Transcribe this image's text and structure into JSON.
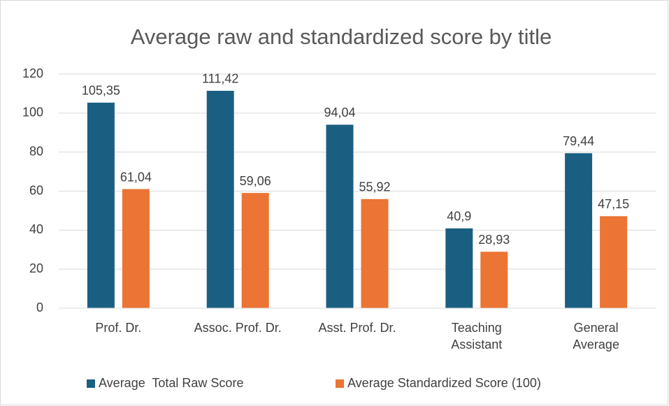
{
  "chart_data": {
    "type": "bar",
    "title": "Average raw and standardized score by title",
    "categories": [
      [
        "Prof. Dr."
      ],
      [
        "Assoc. Prof. Dr."
      ],
      [
        "Asst. Prof. Dr."
      ],
      [
        "Teaching",
        "Assistant"
      ],
      [
        "General",
        "Average"
      ]
    ],
    "series": [
      {
        "name": "Average  Total Raw Score",
        "color": "#1a5f82",
        "values": [
          105.35,
          111.42,
          94.04,
          40.9,
          79.44
        ],
        "value_labels": [
          "105,35",
          "111,42",
          "94,04",
          "40,9",
          "79,44"
        ]
      },
      {
        "name": "Average Standardized Score (100)",
        "color": "#ec7434",
        "values": [
          61.04,
          59.06,
          55.92,
          28.93,
          47.15
        ],
        "value_labels": [
          "61,04",
          "59,06",
          "55,92",
          "28,93",
          "47,15"
        ]
      }
    ],
    "ylim": [
      0,
      120
    ],
    "yticks": [
      0,
      20,
      40,
      60,
      80,
      100,
      120
    ],
    "grid": true,
    "legend": "bottom"
  }
}
